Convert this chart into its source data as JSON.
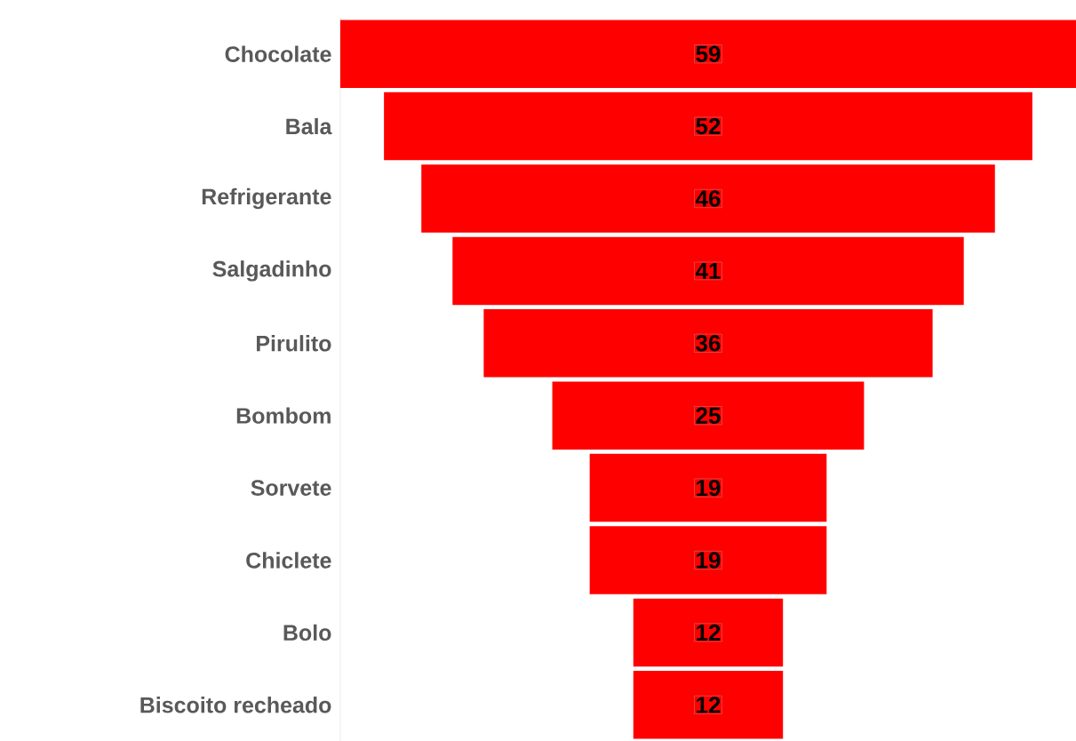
{
  "chart_data": {
    "type": "other",
    "categories": [
      "Chocolate",
      "Bala",
      "Refrigerante",
      "Salgadinho",
      "Pirulito",
      "Bombom",
      "Sorvete",
      "Chiclete",
      "Bolo",
      "Biscoito recheado"
    ],
    "values": [
      59,
      52,
      46,
      41,
      36,
      25,
      19,
      19,
      12,
      12
    ],
    "color": "#ff0000",
    "data_labels": true
  }
}
